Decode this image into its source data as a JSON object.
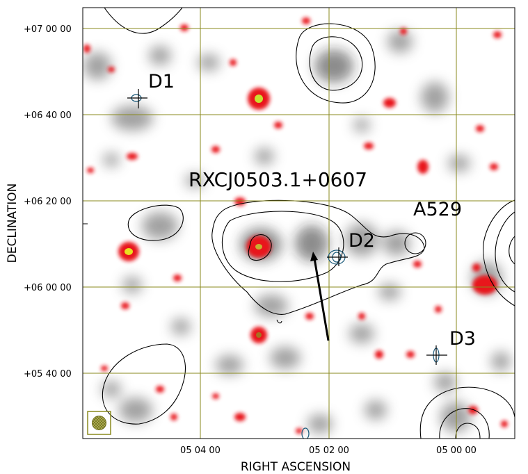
{
  "axes": {
    "xlabel": "RIGHT ASCENSION",
    "ylabel": "DECLINATION",
    "x_ticks": [
      "05 04 00",
      "05 02 00",
      "05 00 00"
    ],
    "y_ticks": [
      "+07 00 00",
      "+06 40 00",
      "+06 20 00",
      "+06 00 00",
      "+05 40 00"
    ]
  },
  "annotations": {
    "cluster_name": "RXCJ0503.1+0607",
    "abell_name": "A529",
    "d1": "D1",
    "d2": "D2",
    "d3": "D3"
  },
  "colors": {
    "grid": "#8a8a1e",
    "radio": "#e8181c",
    "xray": "#3c3c3c",
    "contour": "#000000",
    "beam": "#a3a34a",
    "marker": "#1a5a7a"
  }
}
